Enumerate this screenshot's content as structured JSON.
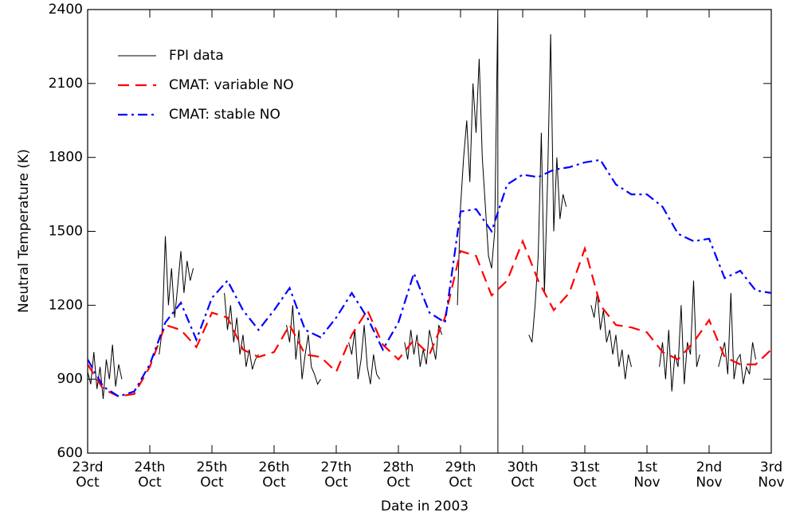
{
  "chart_data": {
    "type": "line",
    "xlabel": "Date in 2003",
    "ylabel": "Neutral Temperature (K)",
    "xlim": [
      0,
      11
    ],
    "ylim": [
      600,
      2400
    ],
    "xticks": [
      {
        "value": 0,
        "label": "23rd Oct"
      },
      {
        "value": 1,
        "label": "24th Oct"
      },
      {
        "value": 2,
        "label": "25th Oct"
      },
      {
        "value": 3,
        "label": "26th Oct"
      },
      {
        "value": 4,
        "label": "27th Oct"
      },
      {
        "value": 5,
        "label": "28th Oct"
      },
      {
        "value": 6,
        "label": "29th Oct"
      },
      {
        "value": 7,
        "label": "30th Oct"
      },
      {
        "value": 8,
        "label": "31st Oct"
      },
      {
        "value": 9,
        "label": "1st Nov"
      },
      {
        "value": 10,
        "label": "2nd Nov"
      },
      {
        "value": 11,
        "label": "3rd Nov"
      }
    ],
    "yticks": [
      600,
      900,
      1200,
      1500,
      1800,
      2100,
      2400
    ],
    "legend": "upper left",
    "series": [
      {
        "name": "FPI data",
        "color": "#000000",
        "dash": "solid",
        "x": [
          0,
          0.05,
          0.1,
          0.15,
          0.2,
          0.25,
          0.3,
          0.35,
          0.4,
          0.45,
          0.5,
          0.55,
          0.8,
          1.15,
          1.2,
          1.25,
          1.3,
          1.35,
          1.4,
          1.45,
          1.5,
          1.55,
          1.6,
          1.65,
          1.7,
          1.9,
          2.2,
          2.25,
          2.3,
          2.35,
          2.4,
          2.45,
          2.5,
          2.55,
          2.6,
          2.65,
          2.7,
          2.75,
          3.0,
          3.2,
          3.25,
          3.3,
          3.35,
          3.4,
          3.45,
          3.5,
          3.55,
          3.6,
          3.65,
          3.7,
          3.75,
          4.0,
          4.2,
          4.25,
          4.3,
          4.35,
          4.4,
          4.45,
          4.5,
          4.55,
          4.6,
          4.65,
          4.7,
          4.9,
          5.1,
          5.15,
          5.2,
          5.25,
          5.3,
          5.35,
          5.4,
          5.45,
          5.5,
          5.55,
          5.6,
          5.65,
          5.7,
          5.9,
          5.95,
          6.0,
          6.05,
          6.1,
          6.15,
          6.2,
          6.25,
          6.3,
          6.35,
          6.4,
          6.45,
          6.5,
          6.55,
          6.6,
          6.601,
          6.8,
          7.1,
          7.15,
          7.2,
          7.25,
          7.3,
          7.35,
          7.4,
          7.45,
          7.5,
          7.55,
          7.6,
          7.65,
          7.7,
          8.0,
          8.1,
          8.15,
          8.2,
          8.25,
          8.3,
          8.35,
          8.4,
          8.45,
          8.5,
          8.55,
          8.6,
          8.65,
          8.7,
          8.75,
          9.0,
          9.2,
          9.25,
          9.3,
          9.35,
          9.4,
          9.45,
          9.5,
          9.55,
          9.6,
          9.65,
          9.7,
          9.75,
          9.8,
          9.85,
          10.0,
          10.15,
          10.2,
          10.25,
          10.3,
          10.35,
          10.4,
          10.45,
          10.5,
          10.55,
          10.6,
          10.65,
          10.7,
          10.75
        ],
        "values": [
          930,
          880,
          1010,
          860,
          950,
          820,
          980,
          900,
          1040,
          870,
          960,
          900,
          null,
          1000,
          1100,
          1480,
          1200,
          1350,
          1150,
          1280,
          1420,
          1250,
          1380,
          1300,
          1350,
          null,
          1250,
          1100,
          1200,
          1050,
          1150,
          1000,
          1080,
          950,
          1020,
          940,
          980,
          1000,
          null,
          1120,
          1050,
          1200,
          980,
          1100,
          900,
          1000,
          1080,
          950,
          920,
          880,
          900,
          null,
          1050,
          1000,
          1100,
          900,
          980,
          1120,
          950,
          880,
          1000,
          920,
          900,
          null,
          1050,
          980,
          1100,
          1000,
          1080,
          950,
          1020,
          960,
          1100,
          1040,
          980,
          1120,
          1080,
          null,
          1200,
          1600,
          1800,
          1950,
          1700,
          2100,
          1900,
          2200,
          1800,
          1600,
          1400,
          1350,
          1500,
          2400,
          600,
          null,
          1080,
          1050,
          1200,
          1400,
          1900,
          1250,
          1700,
          2300,
          1500,
          1800,
          1550,
          1650,
          1600,
          null,
          1200,
          1150,
          1250,
          1100,
          1180,
          1050,
          1100,
          1000,
          1080,
          950,
          1020,
          900,
          1000,
          950,
          null,
          950,
          1050,
          900,
          1100,
          850,
          1000,
          950,
          1200,
          880,
          1050,
          1000,
          1300,
          950,
          1000,
          null,
          950,
          1000,
          1050,
          920,
          1250,
          900,
          980,
          1000,
          880,
          950,
          920,
          1050,
          980
        ]
      },
      {
        "name": "CMAT: variable NO",
        "color": "#ff0000",
        "dash": "dashed",
        "x": [
          0,
          0.25,
          0.5,
          0.75,
          1,
          1.25,
          1.5,
          1.75,
          2,
          2.25,
          2.5,
          2.75,
          3,
          3.25,
          3.5,
          3.75,
          4,
          4.25,
          4.5,
          4.75,
          5,
          5.25,
          5.5,
          5.75,
          6,
          6.25,
          6.5,
          6.75,
          7,
          7.25,
          7.5,
          7.75,
          8,
          8.25,
          8.5,
          8.75,
          9,
          9.25,
          9.5,
          9.75,
          10,
          10.25,
          10.5,
          10.75,
          11
        ],
        "values": [
          960,
          860,
          830,
          840,
          950,
          1120,
          1100,
          1030,
          1170,
          1150,
          1020,
          990,
          1010,
          1120,
          1000,
          990,
          930,
          1080,
          1180,
          1040,
          980,
          1060,
          1000,
          1150,
          1420,
          1400,
          1240,
          1300,
          1460,
          1300,
          1180,
          1250,
          1430,
          1200,
          1120,
          1110,
          1090,
          1010,
          980,
          1050,
          1140,
          990,
          960,
          960,
          1020
        ]
      },
      {
        "name": "CMAT: stable NO",
        "color": "#0000ff",
        "dash": "dashdot",
        "x": [
          0,
          0.25,
          0.5,
          0.75,
          1,
          1.25,
          1.5,
          1.75,
          2,
          2.25,
          2.5,
          2.75,
          3,
          3.25,
          3.5,
          3.75,
          4,
          4.25,
          4.5,
          4.75,
          5,
          5.25,
          5.5,
          5.75,
          6,
          6.25,
          6.5,
          6.75,
          7,
          7.25,
          7.5,
          7.75,
          8,
          8.25,
          8.5,
          8.75,
          9,
          9.25,
          9.5,
          9.75,
          10,
          10.25,
          10.5,
          10.75,
          11
        ],
        "values": [
          980,
          870,
          830,
          850,
          960,
          1130,
          1210,
          1060,
          1230,
          1300,
          1180,
          1100,
          1180,
          1270,
          1100,
          1070,
          1150,
          1250,
          1150,
          1020,
          1130,
          1330,
          1170,
          1130,
          1580,
          1590,
          1500,
          1690,
          1730,
          1720,
          1750,
          1760,
          1780,
          1790,
          1690,
          1650,
          1650,
          1600,
          1490,
          1460,
          1470,
          1310,
          1340,
          1260,
          1250
        ]
      }
    ]
  }
}
